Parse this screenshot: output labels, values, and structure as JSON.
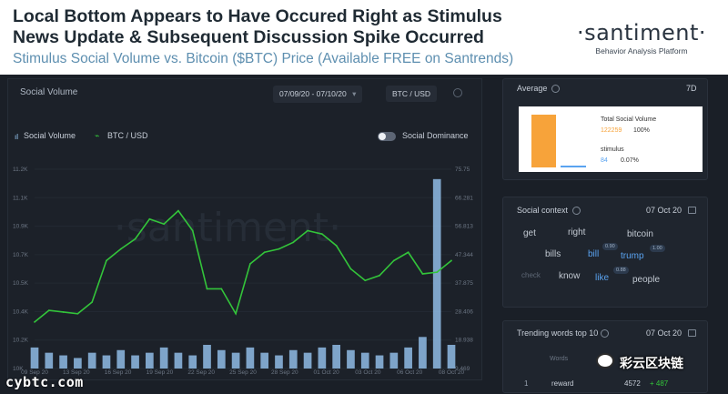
{
  "header": {
    "headline_line1": "Local Bottom Appears to Have Occured Right as Stimulus",
    "headline_line2": "News Update & Subsequent Discussion Spike Occurred",
    "subline": "Stimulus Social Volume vs. Bitcoin ($BTC) Price (Available FREE on Santrends)",
    "brand": "·santiment·",
    "brand_tagline": "Behavior Analysis Platform"
  },
  "chart_panel": {
    "title": "Social Volume",
    "date_range": "07/09/20 - 07/10/20",
    "pair": "BTC / USD",
    "legend": {
      "series1": "Social Volume",
      "series2": "BTC / USD",
      "toggle_label": "Social Dominance"
    },
    "watermark": "·santiment·",
    "y_left_ticks": [
      "11.2K",
      "11.1K",
      "10.9K",
      "10.7K",
      "10.5K",
      "10.4K",
      "10.2K",
      "10K"
    ],
    "y_right_ticks": [
      "75.75",
      "66.281",
      "56.813",
      "47.344",
      "37.875",
      "28.406",
      "18.938",
      "9.469"
    ],
    "x_ticks": [
      "09 Sep 20",
      "13 Sep 20",
      "16 Sep 20",
      "19 Sep 20",
      "22 Sep 20",
      "25 Sep 20",
      "28 Sep 20",
      "01 Oct 20",
      "03 Oct 20",
      "06 Oct 20",
      "08 Oct 20"
    ]
  },
  "chart_data": {
    "type": "line",
    "x": [
      "09 Sep 20",
      "10 Sep 20",
      "11 Sep 20",
      "12 Sep 20",
      "13 Sep 20",
      "14 Sep 20",
      "15 Sep 20",
      "16 Sep 20",
      "17 Sep 20",
      "18 Sep 20",
      "19 Sep 20",
      "20 Sep 20",
      "21 Sep 20",
      "22 Sep 20",
      "23 Sep 20",
      "24 Sep 20",
      "25 Sep 20",
      "26 Sep 20",
      "27 Sep 20",
      "28 Sep 20",
      "29 Sep 20",
      "30 Sep 20",
      "01 Oct 20",
      "02 Oct 20",
      "03 Oct 20",
      "04 Oct 20",
      "05 Oct 20",
      "06 Oct 20",
      "07 Oct 20",
      "08 Oct 20"
    ],
    "series": [
      {
        "name": "BTC / USD",
        "axis": "left",
        "color": "#33c43a",
        "values": [
          10280,
          10350,
          10340,
          10330,
          10400,
          10650,
          10720,
          10780,
          10900,
          10870,
          10950,
          10830,
          10480,
          10480,
          10330,
          10630,
          10700,
          10720,
          10760,
          10830,
          10810,
          10740,
          10600,
          10530,
          10560,
          10650,
          10700,
          10570,
          10580,
          10650
        ]
      },
      {
        "name": "Social Volume",
        "axis": "right",
        "color": "#9fd0ff",
        "values": [
          8,
          6,
          5,
          4,
          6,
          5,
          7,
          5,
          6,
          8,
          6,
          5,
          9,
          7,
          6,
          8,
          6,
          5,
          7,
          6,
          8,
          9,
          7,
          6,
          5,
          6,
          8,
          12,
          72,
          9
        ]
      }
    ],
    "ylim_left": [
      10000,
      11200
    ],
    "ylim_right": [
      0,
      75.75
    ]
  },
  "sidebar": {
    "average": {
      "label": "Average",
      "period": "7D",
      "total_label": "Total Social Volume",
      "total_value": "122259",
      "total_pct": "100%",
      "term_label": "stimulus",
      "term_value": "84",
      "term_pct": "0.07%"
    },
    "social_context": {
      "label": "Social context",
      "date": "07 Oct 20",
      "words": [
        {
          "text": "get",
          "kind": "plain"
        },
        {
          "text": "right",
          "kind": "plain"
        },
        {
          "text": "bitcoin",
          "kind": "plain"
        },
        {
          "text": "bills",
          "kind": "plain"
        },
        {
          "text": "bill",
          "kind": "blue"
        },
        {
          "text": "trump",
          "kind": "blue"
        },
        {
          "text": "check",
          "kind": "dim"
        },
        {
          "text": "know",
          "kind": "plain"
        },
        {
          "text": "like",
          "kind": "blue"
        },
        {
          "text": "people",
          "kind": "plain"
        }
      ],
      "scores": [
        "0.90",
        "1.00",
        "0.88"
      ]
    },
    "trending": {
      "label": "Trending words top 10",
      "date": "07 Oct 20",
      "col_header": "Words",
      "row_rank": "1",
      "row_word": "reward",
      "row_volume": "4572",
      "row_change": "+ 487"
    }
  },
  "footer": {
    "site": "cybtc.com",
    "wechat": "彩云区块链"
  },
  "colors": {
    "bg_dark": "#1a1f27",
    "price_line": "#33c43a",
    "volume_bar": "#9fd0ff",
    "accent_blue": "#5aa3f0",
    "orange_bar": "#f7a33a"
  }
}
